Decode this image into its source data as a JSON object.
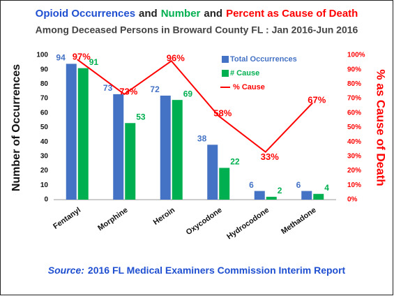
{
  "chart_data": {
    "type": "bar",
    "title_parts": [
      {
        "text": "Opioid Occurrences",
        "color": "#1f4fd1"
      },
      {
        "text": "and",
        "color": "#222222"
      },
      {
        "text": "Number",
        "color": "#00b050"
      },
      {
        "text": "and",
        "color": "#222222"
      },
      {
        "text": "Percent as Cause of Death",
        "color": "#ff0000"
      }
    ],
    "subtitle": "Among Deceased Persons in Broward County FL : Jan 2016-Jun 2016",
    "y_label": "Number of Occurrences",
    "y2_label": "% as Cause of Death",
    "categories": [
      "Fentanyl",
      "Morphine",
      "Heroin",
      "Oxycodone",
      "Hydrocodone",
      "Methadone"
    ],
    "series": [
      {
        "name": "Total Occurrences",
        "color": "#4472c4",
        "values": [
          94,
          73,
          72,
          38,
          6,
          6
        ]
      },
      {
        "name": "# Cause",
        "color": "#00b050",
        "values": [
          91,
          53,
          69,
          22,
          2,
          4
        ]
      },
      {
        "name": "% Cause",
        "color": "#ff0000",
        "axis": "y2",
        "type": "line",
        "values": [
          97,
          73,
          96,
          58,
          33,
          67
        ],
        "value_labels": [
          "97%",
          "73%",
          "96%",
          "58%",
          "33%",
          "67%"
        ]
      }
    ],
    "ylim": [
      0,
      100
    ],
    "yticks": [
      0,
      10,
      20,
      30,
      40,
      50,
      60,
      70,
      80,
      90,
      100
    ],
    "y2lim": [
      0,
      100
    ],
    "y2ticks": [
      {
        "value": 0,
        "label": "0%"
      },
      {
        "value": 10,
        "label": "10%"
      },
      {
        "value": 20,
        "label": "20%"
      },
      {
        "value": 30,
        "label": "30%"
      },
      {
        "value": 40,
        "label": "40%"
      },
      {
        "value": 50,
        "label": "50%"
      },
      {
        "value": 60,
        "label": "60%"
      },
      {
        "value": 70,
        "label": "70%"
      },
      {
        "value": 80,
        "label": "80%"
      },
      {
        "value": 90,
        "label": "90%"
      },
      {
        "value": 100,
        "label": "100%"
      }
    ],
    "source_label": "Source:",
    "source_text": "2016 FL Medical Examiners Commission Interim Report",
    "source_color": "#1f4fd1",
    "legend": "upper center"
  }
}
